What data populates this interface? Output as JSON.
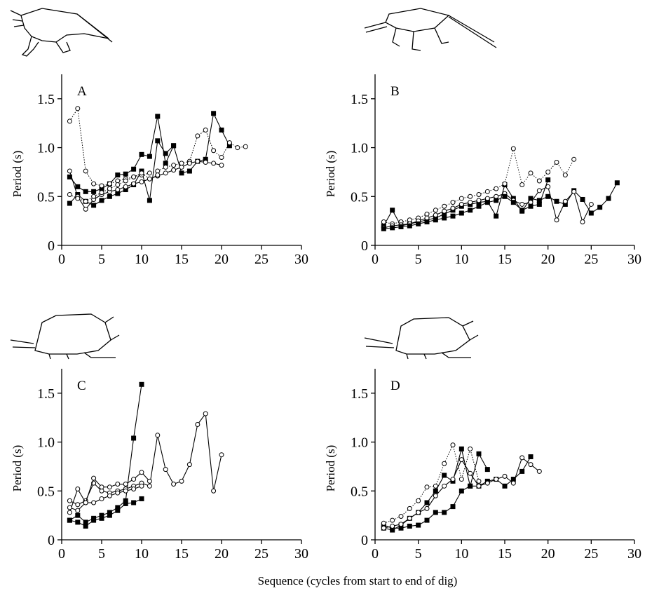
{
  "xlabel": "Sequence (cycles from start to end of dig)",
  "chart_data": [
    {
      "type": "line",
      "title": "A",
      "ylabel": "Period (s)",
      "xlim": [
        0,
        30
      ],
      "ylim": [
        0,
        1.75
      ],
      "xticks": [
        0,
        5,
        10,
        15,
        20,
        25,
        30
      ],
      "yticks": [
        0,
        0.5,
        {
          "value": 1,
          "label": "1.0"
        },
        1.5
      ],
      "series": [
        {
          "marker": "square",
          "line_style": "solid",
          "color": "#000000",
          "x": [
            1,
            2,
            3,
            4,
            5,
            6,
            7,
            8,
            9,
            10,
            11,
            12,
            13,
            14
          ],
          "values": [
            0.7,
            0.6,
            0.55,
            0.55,
            0.58,
            0.63,
            0.72,
            0.73,
            0.78,
            0.93,
            0.91,
            1.32,
            0.84,
            1.02
          ]
        },
        {
          "marker": "square",
          "line_style": "solid",
          "color": "#000000",
          "x": [
            1,
            2,
            3,
            4,
            5,
            6,
            7,
            8,
            9,
            10,
            11,
            12,
            13,
            14,
            15,
            16,
            17,
            18,
            19,
            20,
            21
          ],
          "values": [
            0.43,
            0.52,
            0.45,
            0.41,
            0.46,
            0.5,
            0.53,
            0.57,
            0.62,
            0.76,
            0.46,
            1.07,
            0.94,
            1.02,
            0.74,
            0.76,
            0.86,
            0.88,
            1.35,
            1.18,
            1.02
          ]
        },
        {
          "marker": "circle",
          "line_style": "dotted",
          "color": "#000000",
          "x": [
            1,
            2,
            3,
            4,
            5,
            6,
            7,
            8,
            9,
            10,
            11,
            12,
            13,
            14,
            15,
            16,
            17,
            18,
            19,
            20,
            21,
            22,
            23
          ],
          "values": [
            1.27,
            1.4,
            0.76,
            0.63,
            0.61,
            0.63,
            0.66,
            0.68,
            0.7,
            0.72,
            0.74,
            0.76,
            0.8,
            0.82,
            0.84,
            0.86,
            1.12,
            1.18,
            0.97,
            0.9,
            1.05,
            1.0,
            1.01
          ]
        },
        {
          "marker": "circle",
          "line_style": "solid",
          "color": "#000000",
          "x": [
            1,
            2,
            3,
            4,
            5,
            6,
            7,
            8,
            9,
            10,
            11,
            12,
            13,
            14,
            15,
            16,
            17,
            18,
            19,
            20
          ],
          "values": [
            0.76,
            0.5,
            0.37,
            0.47,
            0.52,
            0.55,
            0.57,
            0.6,
            0.63,
            0.65,
            0.68,
            0.71,
            0.74,
            0.77,
            0.8,
            0.84,
            0.86,
            0.85,
            0.84,
            0.82
          ]
        },
        {
          "marker": "circle",
          "line_style": "dotted",
          "color": "#000000",
          "x": [
            1,
            2,
            3,
            4,
            5,
            6,
            7,
            8,
            9,
            10,
            11,
            12
          ],
          "values": [
            0.52,
            0.48,
            0.45,
            0.5,
            0.54,
            0.58,
            0.62,
            0.66,
            0.7,
            0.74,
            0.68,
            0.72
          ]
        }
      ]
    },
    {
      "type": "line",
      "title": "B",
      "ylabel": "Period (s)",
      "xlim": [
        0,
        30
      ],
      "ylim": [
        0,
        1.75
      ],
      "xticks": [
        0,
        5,
        10,
        15,
        20,
        25,
        30
      ],
      "yticks": [
        0,
        0.5,
        {
          "value": 1,
          "label": "1.0"
        },
        1.5
      ],
      "series": [
        {
          "marker": "square",
          "line_style": "solid",
          "color": "#000000",
          "x": [
            1,
            2,
            3,
            4,
            5,
            6,
            7,
            8,
            9,
            10,
            11,
            12,
            13,
            14,
            15,
            16,
            17,
            18,
            19,
            20,
            21,
            22,
            23,
            24,
            25,
            26,
            27,
            28
          ],
          "values": [
            0.2,
            0.36,
            0.2,
            0.22,
            0.24,
            0.26,
            0.28,
            0.32,
            0.36,
            0.4,
            0.42,
            0.44,
            0.45,
            0.3,
            0.62,
            0.48,
            0.35,
            0.48,
            0.46,
            0.5,
            0.45,
            0.42,
            0.56,
            0.47,
            0.33,
            0.39,
            0.48,
            0.64
          ]
        },
        {
          "marker": "circle",
          "line_style": "dotted",
          "color": "#000000",
          "x": [
            1,
            2,
            3,
            4,
            5,
            6,
            7,
            8,
            9,
            10,
            11,
            12,
            13,
            14,
            15,
            16,
            17,
            18,
            19,
            20,
            21,
            22,
            23
          ],
          "values": [
            0.24,
            0.22,
            0.24,
            0.26,
            0.28,
            0.32,
            0.36,
            0.4,
            0.44,
            0.48,
            0.5,
            0.52,
            0.55,
            0.58,
            0.63,
            0.99,
            0.62,
            0.74,
            0.66,
            0.75,
            0.85,
            0.72,
            0.88
          ]
        },
        {
          "marker": "circle",
          "line_style": "solid",
          "color": "#000000",
          "x": [
            1,
            2,
            3,
            4,
            5,
            6,
            7,
            8,
            9,
            10,
            11,
            12,
            13,
            14,
            15,
            16,
            17,
            18,
            19,
            20,
            21,
            22,
            23,
            24,
            25
          ],
          "values": [
            0.18,
            0.2,
            0.21,
            0.22,
            0.25,
            0.28,
            0.31,
            0.35,
            0.38,
            0.42,
            0.44,
            0.46,
            0.48,
            0.5,
            0.53,
            0.46,
            0.42,
            0.44,
            0.56,
            0.6,
            0.26,
            0.45,
            0.55,
            0.24,
            0.42
          ]
        },
        {
          "marker": "square",
          "line_style": "solid",
          "color": "#000000",
          "x": [
            1,
            2,
            3,
            4,
            5,
            6,
            7,
            8,
            9,
            10,
            11,
            12,
            13,
            14,
            15,
            16,
            17,
            18,
            19,
            20
          ],
          "values": [
            0.17,
            0.18,
            0.19,
            0.2,
            0.22,
            0.24,
            0.26,
            0.28,
            0.3,
            0.33,
            0.36,
            0.4,
            0.44,
            0.46,
            0.5,
            0.44,
            0.36,
            0.4,
            0.42,
            0.67
          ]
        }
      ]
    },
    {
      "type": "line",
      "title": "C",
      "ylabel": "Period (s)",
      "xlim": [
        0,
        30
      ],
      "ylim": [
        0,
        1.75
      ],
      "xticks": [
        0,
        5,
        10,
        15,
        20,
        25,
        30
      ],
      "yticks": [
        0,
        0.5,
        {
          "value": 1,
          "label": "1.0"
        },
        1.5
      ],
      "series": [
        {
          "marker": "square",
          "line_style": "solid",
          "color": "#000000",
          "x": [
            1,
            2,
            3,
            4,
            5,
            6,
            7,
            8,
            9,
            10
          ],
          "values": [
            0.2,
            0.25,
            0.18,
            0.22,
            0.25,
            0.28,
            0.33,
            0.4,
            1.04,
            1.59
          ]
        },
        {
          "marker": "square",
          "line_style": "solid",
          "color": "#000000",
          "x": [
            1,
            2,
            3,
            4,
            5,
            6,
            7,
            8,
            9,
            10
          ],
          "values": [
            0.2,
            0.18,
            0.14,
            0.2,
            0.22,
            0.25,
            0.3,
            0.37,
            0.38,
            0.42
          ]
        },
        {
          "marker": "circle",
          "line_style": "solid",
          "color": "#000000",
          "x": [
            1,
            2,
            3,
            4,
            5,
            6,
            7,
            8,
            9,
            10,
            11,
            12,
            13,
            14,
            15,
            16,
            17,
            18,
            19,
            20
          ],
          "values": [
            0.4,
            0.36,
            0.4,
            0.58,
            0.5,
            0.48,
            0.5,
            0.52,
            0.55,
            0.58,
            0.55,
            1.07,
            0.72,
            0.57,
            0.6,
            0.77,
            1.18,
            1.29,
            0.5,
            0.87
          ]
        },
        {
          "marker": "circle",
          "line_style": "solid",
          "color": "#000000",
          "x": [
            1,
            2,
            3,
            4,
            5,
            6,
            7,
            8,
            9,
            10,
            11
          ],
          "values": [
            0.28,
            0.52,
            0.38,
            0.63,
            0.54,
            0.54,
            0.57,
            0.57,
            0.62,
            0.69,
            0.6
          ]
        },
        {
          "marker": "circle",
          "line_style": "solid",
          "color": "#000000",
          "x": [
            1,
            2,
            3,
            4,
            5,
            6,
            7,
            8,
            9,
            10
          ],
          "values": [
            0.33,
            0.3,
            0.38,
            0.38,
            0.42,
            0.45,
            0.48,
            0.5,
            0.52,
            0.55
          ]
        }
      ]
    },
    {
      "type": "line",
      "title": "D",
      "ylabel": "Period (s)",
      "xlim": [
        0,
        30
      ],
      "ylim": [
        0,
        1.75
      ],
      "xticks": [
        0,
        5,
        10,
        15,
        20,
        25,
        30
      ],
      "yticks": [
        0,
        0.5,
        {
          "value": 1,
          "label": "1.0"
        },
        1.5
      ],
      "series": [
        {
          "marker": "square",
          "line_style": "solid",
          "color": "#000000",
          "x": [
            1,
            2,
            3,
            4,
            5,
            6,
            7,
            8,
            9,
            10,
            11,
            12,
            13,
            14,
            15,
            16,
            17,
            18
          ],
          "values": [
            0.15,
            0.12,
            0.12,
            0.14,
            0.15,
            0.2,
            0.28,
            0.28,
            0.34,
            0.5,
            0.55,
            0.55,
            0.6,
            0.62,
            0.55,
            0.62,
            0.7,
            0.85
          ]
        },
        {
          "marker": "square",
          "line_style": "solid",
          "color": "#000000",
          "x": [
            1,
            2,
            3,
            4,
            5,
            6,
            7,
            8,
            9,
            10,
            11,
            12,
            13
          ],
          "values": [
            0.12,
            0.1,
            0.15,
            0.22,
            0.28,
            0.38,
            0.5,
            0.66,
            0.6,
            0.93,
            0.55,
            0.88,
            0.72
          ]
        },
        {
          "marker": "circle",
          "line_style": "dotted",
          "color": "#000000",
          "x": [
            1,
            2,
            3,
            4,
            5,
            6,
            7,
            8,
            9,
            10,
            11,
            12
          ],
          "values": [
            0.17,
            0.2,
            0.24,
            0.32,
            0.4,
            0.54,
            0.55,
            0.78,
            0.97,
            0.62,
            0.93,
            0.6
          ]
        },
        {
          "marker": "circle",
          "line_style": "solid",
          "color": "#000000",
          "x": [
            1,
            2,
            3,
            4,
            5,
            6,
            7,
            8,
            9,
            10,
            11,
            12,
            13,
            14,
            15,
            16,
            17,
            18,
            19
          ],
          "values": [
            0.12,
            0.14,
            0.16,
            0.22,
            0.28,
            0.32,
            0.45,
            0.55,
            0.62,
            0.82,
            0.68,
            0.55,
            0.58,
            0.62,
            0.65,
            0.58,
            0.84,
            0.77,
            0.7
          ]
        }
      ]
    }
  ]
}
